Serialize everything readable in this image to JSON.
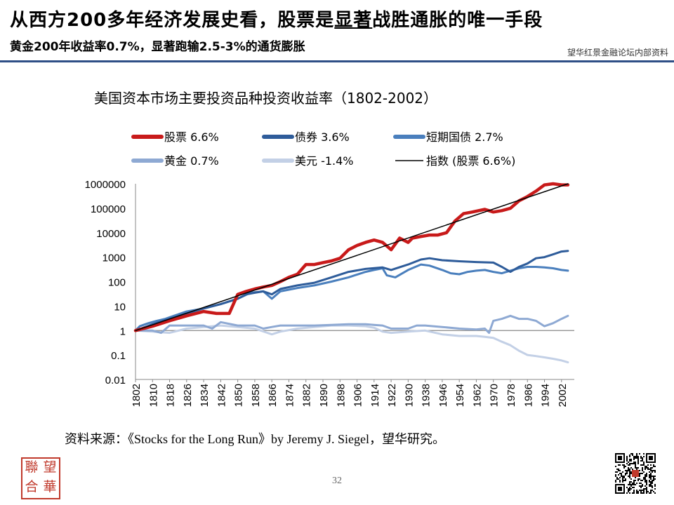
{
  "header": {
    "title_pre": "从西方200多年经济发展史看，股票是",
    "title_underlined": "显著",
    "title_post": "战胜通胀的唯一手段",
    "subtitle": "黄金200年收益率0.7%，显著跑输2.5-3%的通货膨胀",
    "internal_label": "望华红景金融论坛内部资料"
  },
  "source": "资料来源：《Stocks for the Long Run》by Jeremy J. Siegel，望华研究。",
  "page_number": "32",
  "seal_text": [
    "望",
    "聯",
    "華",
    "合"
  ],
  "chart_data": {
    "type": "line",
    "title": "美国资本市场主要投资品种投资收益率（1802-2002）",
    "y_scale": "log",
    "ylim": [
      0.01,
      1000000
    ],
    "y_ticks": [
      "0.01",
      "0.1",
      "1",
      "10",
      "100",
      "1000",
      "10000",
      "100000",
      "1000000"
    ],
    "xlim": [
      1802,
      2008
    ],
    "x_ticks": [
      "1802",
      "1810",
      "1818",
      "1826",
      "1834",
      "1842",
      "1850",
      "1858",
      "1866",
      "1874",
      "1882",
      "1890",
      "1898",
      "1906",
      "1914",
      "1922",
      "1930",
      "1938",
      "1946",
      "1954",
      "1962",
      "1970",
      "1978",
      "1986",
      "1994",
      "2002"
    ],
    "reference_line": 1,
    "legend_position": "top",
    "series": [
      {
        "name": "股票 6.6%",
        "color": "#c81a1a",
        "width": 4.5,
        "x": [
          1802,
          1810,
          1818,
          1826,
          1834,
          1840,
          1846,
          1850,
          1854,
          1858,
          1862,
          1866,
          1870,
          1874,
          1878,
          1882,
          1886,
          1890,
          1894,
          1898,
          1902,
          1906,
          1910,
          1914,
          1918,
          1922,
          1926,
          1930,
          1932,
          1936,
          1940,
          1944,
          1948,
          1952,
          1956,
          1960,
          1966,
          1970,
          1974,
          1978,
          1982,
          1986,
          1990,
          1994,
          1998,
          2002,
          2005
        ],
        "y": [
          1,
          1.5,
          2.5,
          4,
          6,
          5,
          5,
          30,
          40,
          50,
          60,
          70,
          100,
          150,
          200,
          500,
          500,
          600,
          700,
          900,
          2000,
          3000,
          4000,
          5000,
          4000,
          2000,
          6000,
          4000,
          6000,
          7000,
          8000,
          8000,
          10000,
          30000,
          60000,
          70000,
          90000,
          70000,
          80000,
          100000,
          200000,
          300000,
          500000,
          900000,
          1000000,
          900000,
          900000
        ]
      },
      {
        "name": "债券 3.6%",
        "color": "#2e5c9a",
        "width": 3,
        "x": [
          1802,
          1810,
          1818,
          1826,
          1834,
          1842,
          1850,
          1854,
          1858,
          1862,
          1866,
          1870,
          1878,
          1886,
          1894,
          1902,
          1910,
          1918,
          1922,
          1930,
          1936,
          1940,
          1946,
          1954,
          1962,
          1970,
          1974,
          1978,
          1982,
          1986,
          1990,
          1994,
          1998,
          2002,
          2005
        ],
        "y": [
          1,
          1.8,
          3,
          5,
          8,
          12,
          20,
          30,
          35,
          40,
          30,
          50,
          70,
          90,
          150,
          250,
          330,
          380,
          300,
          500,
          800,
          900,
          750,
          680,
          630,
          600,
          400,
          250,
          400,
          550,
          900,
          1000,
          1300,
          1700,
          1800
        ]
      },
      {
        "name": "短期国债 2.7%",
        "color": "#4a7fbd",
        "width": 3,
        "x": [
          1802,
          1804,
          1808,
          1812,
          1816,
          1820,
          1826,
          1834,
          1842,
          1850,
          1856,
          1862,
          1866,
          1870,
          1878,
          1886,
          1894,
          1902,
          1910,
          1914,
          1918,
          1920,
          1924,
          1930,
          1936,
          1940,
          1946,
          1950,
          1954,
          1958,
          1962,
          1966,
          1970,
          1974,
          1978,
          1982,
          1986,
          1990,
          1994,
          1998,
          2002,
          2005
        ],
        "y": [
          1,
          1.5,
          2,
          2.5,
          3,
          4,
          6,
          8,
          12,
          20,
          35,
          40,
          20,
          40,
          55,
          70,
          100,
          150,
          250,
          300,
          350,
          180,
          150,
          300,
          500,
          450,
          300,
          220,
          200,
          250,
          280,
          300,
          250,
          220,
          280,
          350,
          400,
          400,
          380,
          350,
          300,
          280
        ]
      },
      {
        "name": "黄金 0.7%",
        "color": "#8ea9d3",
        "width": 3,
        "x": [
          1802,
          1810,
          1814,
          1818,
          1826,
          1834,
          1838,
          1842,
          1850,
          1858,
          1862,
          1866,
          1870,
          1878,
          1886,
          1894,
          1902,
          1910,
          1914,
          1918,
          1922,
          1930,
          1934,
          1938,
          1946,
          1954,
          1962,
          1966,
          1968,
          1970,
          1974,
          1978,
          1982,
          1986,
          1990,
          1994,
          1998,
          2002,
          2005
        ],
        "y": [
          1,
          1,
          0.8,
          1.6,
          1.6,
          1.6,
          1.2,
          2.2,
          1.6,
          1.6,
          1.2,
          1.4,
          1.6,
          1.6,
          1.6,
          1.7,
          1.8,
          1.8,
          1.7,
          1.6,
          1.2,
          1.2,
          1.6,
          1.6,
          1.4,
          1.2,
          1.1,
          1.2,
          0.8,
          2.5,
          3,
          4,
          3,
          3,
          2.5,
          1.5,
          2,
          3,
          4
        ]
      },
      {
        "name": "美元 -1.4%",
        "color": "#c3d0e6",
        "width": 3,
        "x": [
          1802,
          1810,
          1818,
          1826,
          1834,
          1842,
          1850,
          1858,
          1866,
          1870,
          1878,
          1886,
          1894,
          1902,
          1910,
          1914,
          1918,
          1922,
          1930,
          1938,
          1946,
          1954,
          1962,
          1966,
          1970,
          1974,
          1978,
          1982,
          1986,
          1990,
          1994,
          1998,
          2002,
          2005
        ],
        "y": [
          1,
          0.9,
          0.8,
          1.2,
          1.4,
          1.6,
          1.4,
          1.2,
          0.7,
          0.9,
          1.2,
          1.4,
          1.6,
          1.6,
          1.5,
          1.3,
          0.9,
          0.8,
          0.9,
          1,
          0.7,
          0.6,
          0.6,
          0.55,
          0.5,
          0.35,
          0.25,
          0.15,
          0.1,
          0.09,
          0.08,
          0.07,
          0.06,
          0.05
        ]
      },
      {
        "name": "指数 (股票 6.6%)",
        "color": "#000000",
        "width": 1.5,
        "x": [
          1802,
          2005
        ],
        "y": [
          1,
          1000000
        ]
      }
    ]
  }
}
